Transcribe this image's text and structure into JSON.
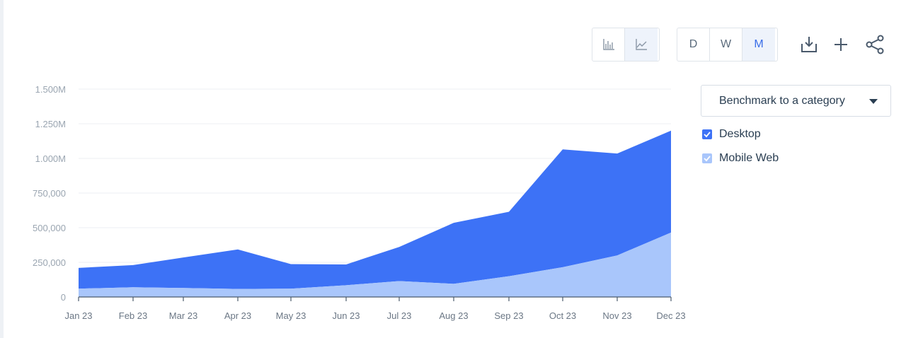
{
  "toolbar": {
    "chart_type_buttons": [
      {
        "icon": "bar-chart-icon",
        "active": false
      },
      {
        "icon": "line-chart-icon",
        "active": true
      }
    ],
    "granularity": [
      {
        "label": "D",
        "active": false
      },
      {
        "label": "W",
        "active": false
      },
      {
        "label": "M",
        "active": true
      }
    ],
    "actions": [
      "download-icon",
      "plus-icon",
      "share-icon"
    ]
  },
  "benchmark": {
    "label": "Benchmark to a category"
  },
  "legend": [
    {
      "label": "Desktop",
      "color": "#3d72f6",
      "checked": true
    },
    {
      "label": "Mobile Web",
      "color": "#a9c6fb",
      "checked": true
    }
  ],
  "colors": {
    "accent": "#3d72f6",
    "accent_light": "#a9c6fb"
  },
  "chart_data": {
    "type": "area",
    "stacked": true,
    "categories": [
      "Jan 23",
      "Feb 23",
      "Mar 23",
      "Apr 23",
      "May 23",
      "Jun 23",
      "Jul 23",
      "Aug 23",
      "Sep 23",
      "Oct 23",
      "Nov 23",
      "Dec 23"
    ],
    "series": [
      {
        "name": "Mobile Web",
        "values": [
          60000,
          70000,
          65000,
          58000,
          60000,
          85000,
          115000,
          95000,
          150000,
          215000,
          300000,
          465000
        ]
      },
      {
        "name": "Desktop",
        "values": [
          150000,
          160000,
          220000,
          285000,
          177000,
          150000,
          246000,
          440000,
          465000,
          850000,
          735000,
          735000
        ]
      }
    ],
    "y_ticks": [
      "0",
      "250,000",
      "500,000",
      "750,000",
      "1.000M",
      "1.250M",
      "1.500M"
    ],
    "y_tick_values": [
      0,
      250000,
      500000,
      750000,
      1000000,
      1250000,
      1500000
    ],
    "ylim": [
      0,
      1500000
    ],
    "grid": true
  }
}
